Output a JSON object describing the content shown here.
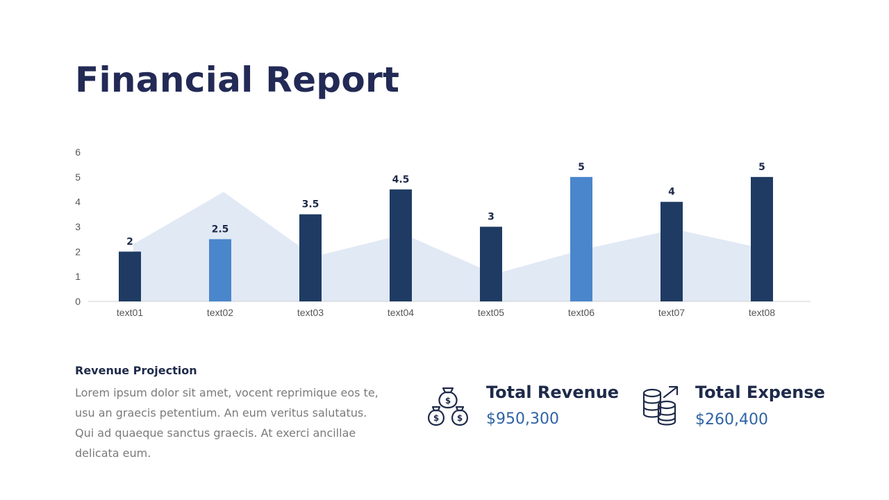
{
  "title": "Financial Report",
  "chart_data": {
    "type": "bar",
    "categories": [
      "text01",
      "text02",
      "text03",
      "text04",
      "text05",
      "text06",
      "text07",
      "text08"
    ],
    "values": [
      2,
      2.5,
      3.5,
      4.5,
      3,
      5,
      4,
      5
    ],
    "value_labels": [
      "2",
      "2.5",
      "3.5",
      "4.5",
      "3",
      "5",
      "4",
      "5"
    ],
    "bar_colors": [
      "#1f3b63",
      "#4a86cc",
      "#1f3b63",
      "#1f3b63",
      "#1f3b63",
      "#4a86cc",
      "#1f3b63",
      "#1f3b63"
    ],
    "background_area": {
      "type": "area",
      "values": [
        2.3,
        4.4,
        1.8,
        2.7,
        1.1,
        2.1,
        2.9,
        2.1
      ],
      "color": "#e1e9f5"
    },
    "yticks": [
      "0",
      "1",
      "2",
      "3",
      "4",
      "5",
      "6"
    ],
    "ylim": [
      0,
      6
    ],
    "grid": false
  },
  "revenue": {
    "title": "Revenue Projection",
    "body": "Lorem ipsum dolor sit amet, vocent reprimique eos te, usu an graecis petentium. An eum veritus salutatus. Qui ad quaeque sanctus graecis. At exerci ancillae delicata eum."
  },
  "stats": [
    {
      "label": "Total Revenue",
      "value": "$950,300",
      "icon": "money-bags-icon"
    },
    {
      "label": "Total Expense",
      "value": "$260,400",
      "icon": "coin-stack-icon"
    }
  ],
  "colors": {
    "title": "#222a55",
    "accent": "#2e63a4",
    "dark_bar": "#1f3b63",
    "light_bar": "#4a86cc"
  }
}
